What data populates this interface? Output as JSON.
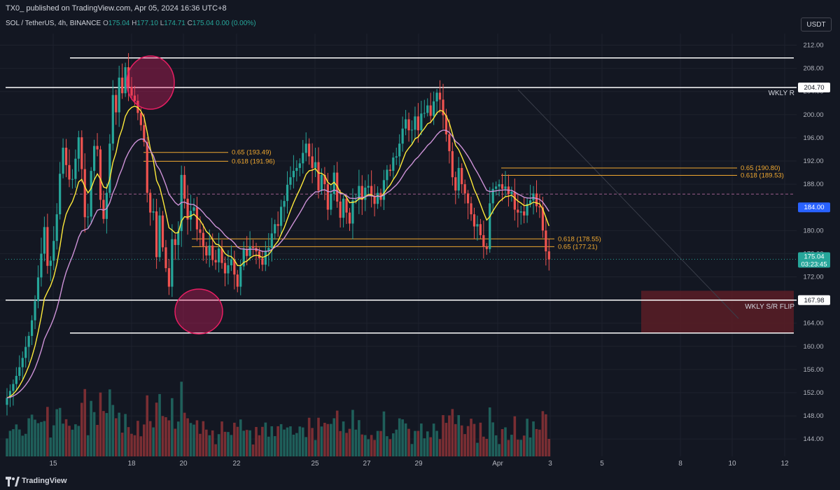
{
  "header": {
    "published_text": "TX0_ published on TradingView.com, Apr 05, 2024 16:36 UTC+8"
  },
  "legend": {
    "symbol": "SOL / TetherUS, 4h, BINANCE",
    "o_label": "O",
    "o_value": "175.04",
    "h_label": "H",
    "h_value": "177.10",
    "l_label": "L",
    "l_value": "174.71",
    "c_label": "C",
    "c_value": "175.04",
    "change": "0.00 (0.00%)"
  },
  "currency_button": "USDT",
  "footer": {
    "brand": "TradingView"
  },
  "chart_data": {
    "type": "candlestick",
    "symbol": "SOLUSDT",
    "timeframe": "4h",
    "exchange": "BINANCE",
    "ylim": [
      141,
      214
    ],
    "y_ticks": [
      "212.00",
      "208.00",
      "204.00",
      "200.00",
      "196.00",
      "192.00",
      "188.00",
      "184.00",
      "180.00",
      "176.00",
      "172.00",
      "168.00",
      "164.00",
      "160.00",
      "156.00",
      "152.00",
      "148.00",
      "144.00"
    ],
    "x_ticks": [
      "15",
      "18",
      "20",
      "22",
      "25",
      "27",
      "29",
      "Apr",
      "3",
      "5",
      "8",
      "10",
      "12"
    ],
    "horizontal_levels": [
      {
        "price": 209.8,
        "label": ""
      },
      {
        "price": 204.7,
        "label": "WKLY R",
        "badge": "204.70"
      },
      {
        "price": 167.98,
        "label": "WKLY S/R FLIP",
        "badge": "167.98"
      },
      {
        "price": 162.3,
        "label": ""
      }
    ],
    "fib_levels": [
      {
        "text": "0.65 (193.49)",
        "price": 193.49
      },
      {
        "text": "0.618 (191.96)",
        "price": 191.96
      },
      {
        "text": "0.65 (190.80)",
        "price": 190.8
      },
      {
        "text": "0.618 (189.53)",
        "price": 189.53
      },
      {
        "text": "0.618 (178.55)",
        "price": 178.55
      },
      {
        "text": "0.65 (177.21)",
        "price": 177.21
      }
    ],
    "dashed_level": 186.3,
    "last_price": {
      "value": "175.04",
      "countdown": "03:23:45"
    },
    "blue_marker": {
      "value": "184.00"
    },
    "zone": {
      "top": 169.6,
      "bottom": 162.3
    },
    "colors": {
      "bull": "#26a69a",
      "bear": "#ef5350",
      "ma_fast": "#ffeb3b",
      "ma_slow": "#ce93d8",
      "fib": "#f0a830",
      "zone": "#5b1d26",
      "marker_blue": "#2962ff"
    },
    "series": {
      "close": [
        151.1,
        152.3,
        153.5,
        154.9,
        156.4,
        158.0,
        159.9,
        161.8,
        164.5,
        167.8,
        171.9,
        176.0,
        180.6,
        173.9,
        174.8,
        178.2,
        182.8,
        189.8,
        194.3,
        191.3,
        188.8,
        188.9,
        192.4,
        196.1,
        190.6,
        182.3,
        182.4,
        190.3,
        194.6,
        194.0,
        185.3,
        182.0,
        186.5,
        195.0,
        203.4,
        200.4,
        206.4,
        203.7,
        208.2,
        204.8,
        203.3,
        202.4,
        200.3,
        198.2,
        195.3,
        186.5,
        183.1,
        183.3,
        175.4,
        182.6,
        177.1,
        173.5,
        170.3,
        178.5,
        177.5,
        179.9,
        189.6,
        185.5,
        181.9,
        183.4,
        184.0,
        180.2,
        179.6,
        177.3,
        175.7,
        177.4,
        174.9,
        174.5,
        176.9,
        174.4,
        172.6,
        174.0,
        175.0,
        172.4,
        170.3,
        173.8,
        176.8,
        175.6,
        177.3,
        177.0,
        176.4,
        175.2,
        174.1,
        176.5,
        177.0,
        179.5,
        181.1,
        180.8,
        184.1,
        185.1,
        187.9,
        189.2,
        190.3,
        190.8,
        191.6,
        193.4,
        195.0,
        192.8,
        190.8,
        191.8,
        186.9,
        189.6,
        188.0,
        183.6,
        186.3,
        190.0,
        185.0,
        182.2,
        185.5,
        183.1,
        181.2,
        185.2,
        185.3,
        187.7,
        185.3,
        187.4,
        187.7,
        185.9,
        184.6,
        186.5,
        185.3,
        188.7,
        190.5,
        190.3,
        192.6,
        192.8,
        195.0,
        197.6,
        199.2,
        197.3,
        197.4,
        199.7,
        197.3,
        200.2,
        200.3,
        201.6,
        199.8,
        202.3,
        203.8,
        202.6,
        199.9,
        196.6,
        193.7,
        189.2,
        186.9,
        190.8,
        188.0,
        186.4,
        184.7,
        182.8,
        180.7,
        181.1,
        179.2,
        177.2,
        176.8,
        184.7,
        187.2,
        187.6,
        188.0,
        187.2,
        187.6,
        186.3,
        186.7,
        183.6,
        183.1,
        183.3,
        182.6,
        184.6,
        185.2,
        186.4,
        184.2,
        184.0,
        180.0,
        176.4,
        175.0
      ],
      "volume_scale": "relative bar heights only (no axis printed)"
    }
  }
}
